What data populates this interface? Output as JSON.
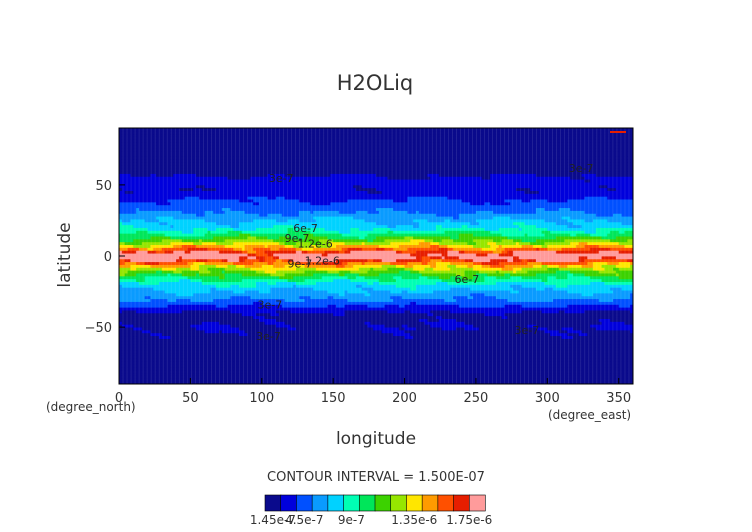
{
  "chart_data": {
    "type": "heatmap",
    "title": "H2OLiq",
    "xlabel": "longitude",
    "ylabel": "latitude",
    "x_unit": "(degree_east)",
    "y_unit": "(degree_north)",
    "xlim": [
      0,
      360
    ],
    "ylim": [
      -90,
      90
    ],
    "x_ticks": [
      "0",
      "50",
      "100",
      "150",
      "200",
      "250",
      "300",
      "350"
    ],
    "x_tick_values": [
      0,
      50,
      100,
      150,
      200,
      250,
      300,
      350
    ],
    "y_ticks": [
      "50",
      "0",
      "−50"
    ],
    "y_tick_values": [
      50,
      0,
      -50
    ],
    "contour_interval": "CONTOUR INTERVAL = 1.500E-07",
    "contour_labels": [
      {
        "text": "3e-7",
        "lon": 105,
        "lat": 52
      },
      {
        "text": "3e-7",
        "lon": 315,
        "lat": 59
      },
      {
        "text": "6e-7",
        "lon": 122,
        "lat": 17
      },
      {
        "text": "9e-7",
        "lon": 116,
        "lat": 10
      },
      {
        "text": "1.2e-6",
        "lon": 125,
        "lat": 6
      },
      {
        "text": "9e-7",
        "lon": 118,
        "lat": -8
      },
      {
        "text": "1.2e-6",
        "lon": 130,
        "lat": -6
      },
      {
        "text": "6e-7",
        "lon": 235,
        "lat": -19
      },
      {
        "text": "3e-7",
        "lon": 97,
        "lat": -37
      },
      {
        "text": "3e-7",
        "lon": 277,
        "lat": -55
      },
      {
        "text": "3e-7",
        "lon": 96,
        "lat": -59
      }
    ],
    "colorbar": {
      "colors": [
        "#0a0a8c",
        "#0000dc",
        "#0050ff",
        "#0a9bff",
        "#00d2ff",
        "#00ffb4",
        "#00e65a",
        "#3cd200",
        "#96e600",
        "#ffe600",
        "#ff9b00",
        "#ff5000",
        "#e61e00",
        "#ff9b9b"
      ],
      "tick_labels": [
        "1.45e-7",
        "4.5e-7",
        "9e-7",
        "1.35e-6",
        "1.75e-6"
      ]
    },
    "field_profile": [
      {
        "lat": -90,
        "value": 1.5e-07
      },
      {
        "lat": -62,
        "value": 1.5e-07
      },
      {
        "lat": -58,
        "value": 2.2e-07
      },
      {
        "lat": -50,
        "value": 2.4e-07
      },
      {
        "lat": -42,
        "value": 2.2e-07
      },
      {
        "lat": -38,
        "value": 2.6e-07
      },
      {
        "lat": -32,
        "value": 4.2e-07
      },
      {
        "lat": -25,
        "value": 5.3e-07
      },
      {
        "lat": -20,
        "value": 6.2e-07
      },
      {
        "lat": -15,
        "value": 7.8e-07
      },
      {
        "lat": -10,
        "value": 9.8e-07
      },
      {
        "lat": -6,
        "value": 1.18e-06
      },
      {
        "lat": -3,
        "value": 1.4e-06
      },
      {
        "lat": 0,
        "value": 1.58e-06
      },
      {
        "lat": 3,
        "value": 1.4e-06
      },
      {
        "lat": 6,
        "value": 1.18e-06
      },
      {
        "lat": 10,
        "value": 9.8e-07
      },
      {
        "lat": 15,
        "value": 7.8e-07
      },
      {
        "lat": 20,
        "value": 6.2e-07
      },
      {
        "lat": 26,
        "value": 5.3e-07
      },
      {
        "lat": 32,
        "value": 4.2e-07
      },
      {
        "lat": 40,
        "value": 3.4e-07
      },
      {
        "lat": 46,
        "value": 2.6e-07
      },
      {
        "lat": 52,
        "value": 2.9e-07
      },
      {
        "lat": 58,
        "value": 2.3e-07
      },
      {
        "lat": 62,
        "value": 1.5e-07
      },
      {
        "lat": 90,
        "value": 1.5e-07
      }
    ]
  }
}
